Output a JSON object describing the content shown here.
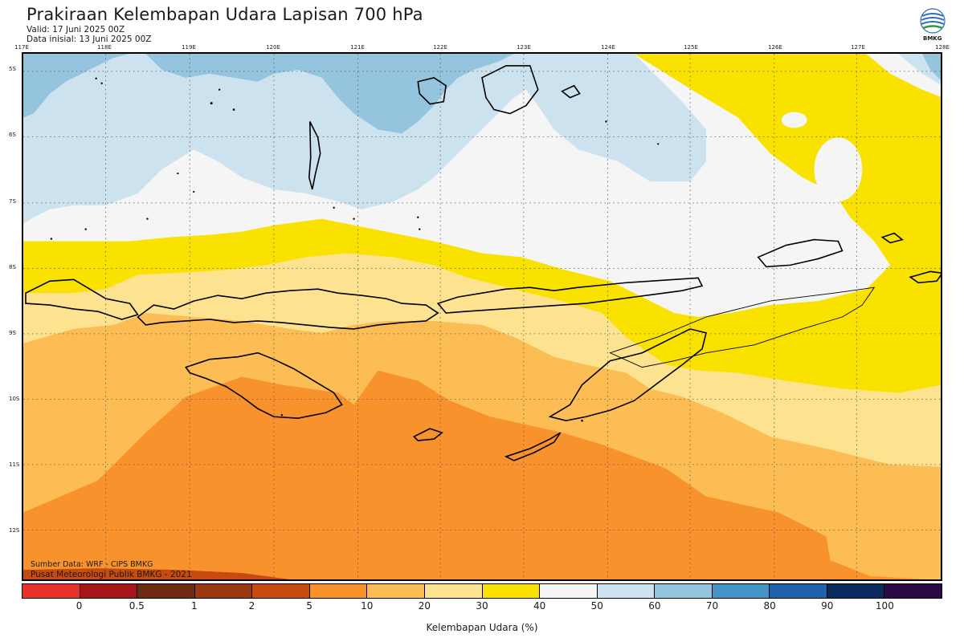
{
  "header": {
    "title": "Prakiraan Kelembapan Udara Lapisan 700 hPa",
    "valid": "Valid: 17 Juni 2025 00Z",
    "initial": "Data inisial: 13 Juni 2025 00Z",
    "logo_text": "BMKG"
  },
  "map": {
    "longitude_ticks": [
      "117E",
      "118E",
      "119E",
      "120E",
      "121E",
      "122E",
      "123E",
      "124E",
      "125E",
      "126E",
      "127E",
      "128E"
    ],
    "latitude_ticks": [
      "5S",
      "6S",
      "7S",
      "8S",
      "9S",
      "10S",
      "11S",
      "12S"
    ],
    "credit_source": "Sumber Data: WRF - CIPS BMKG",
    "credit_org": "Pusat Meteorologi Publik BMKG - 2021"
  },
  "legend": {
    "title": "Kelembapan Udara (%)",
    "labels": [
      "0",
      "0.5",
      "1",
      "2",
      "5",
      "10",
      "20",
      "30",
      "40",
      "50",
      "60",
      "70",
      "80",
      "90",
      "100"
    ],
    "colors": [
      "#e8312b",
      "#a8151a",
      "#6e2a12",
      "#9a3812",
      "#c74b10",
      "#f7922c",
      "#fcbd55",
      "#fde28f",
      "#fae200",
      "#f5f5f5",
      "#cde2ef",
      "#94c4de",
      "#4596c6",
      "#2062a9",
      "#0b2b5c",
      "#2b0a45"
    ]
  }
}
